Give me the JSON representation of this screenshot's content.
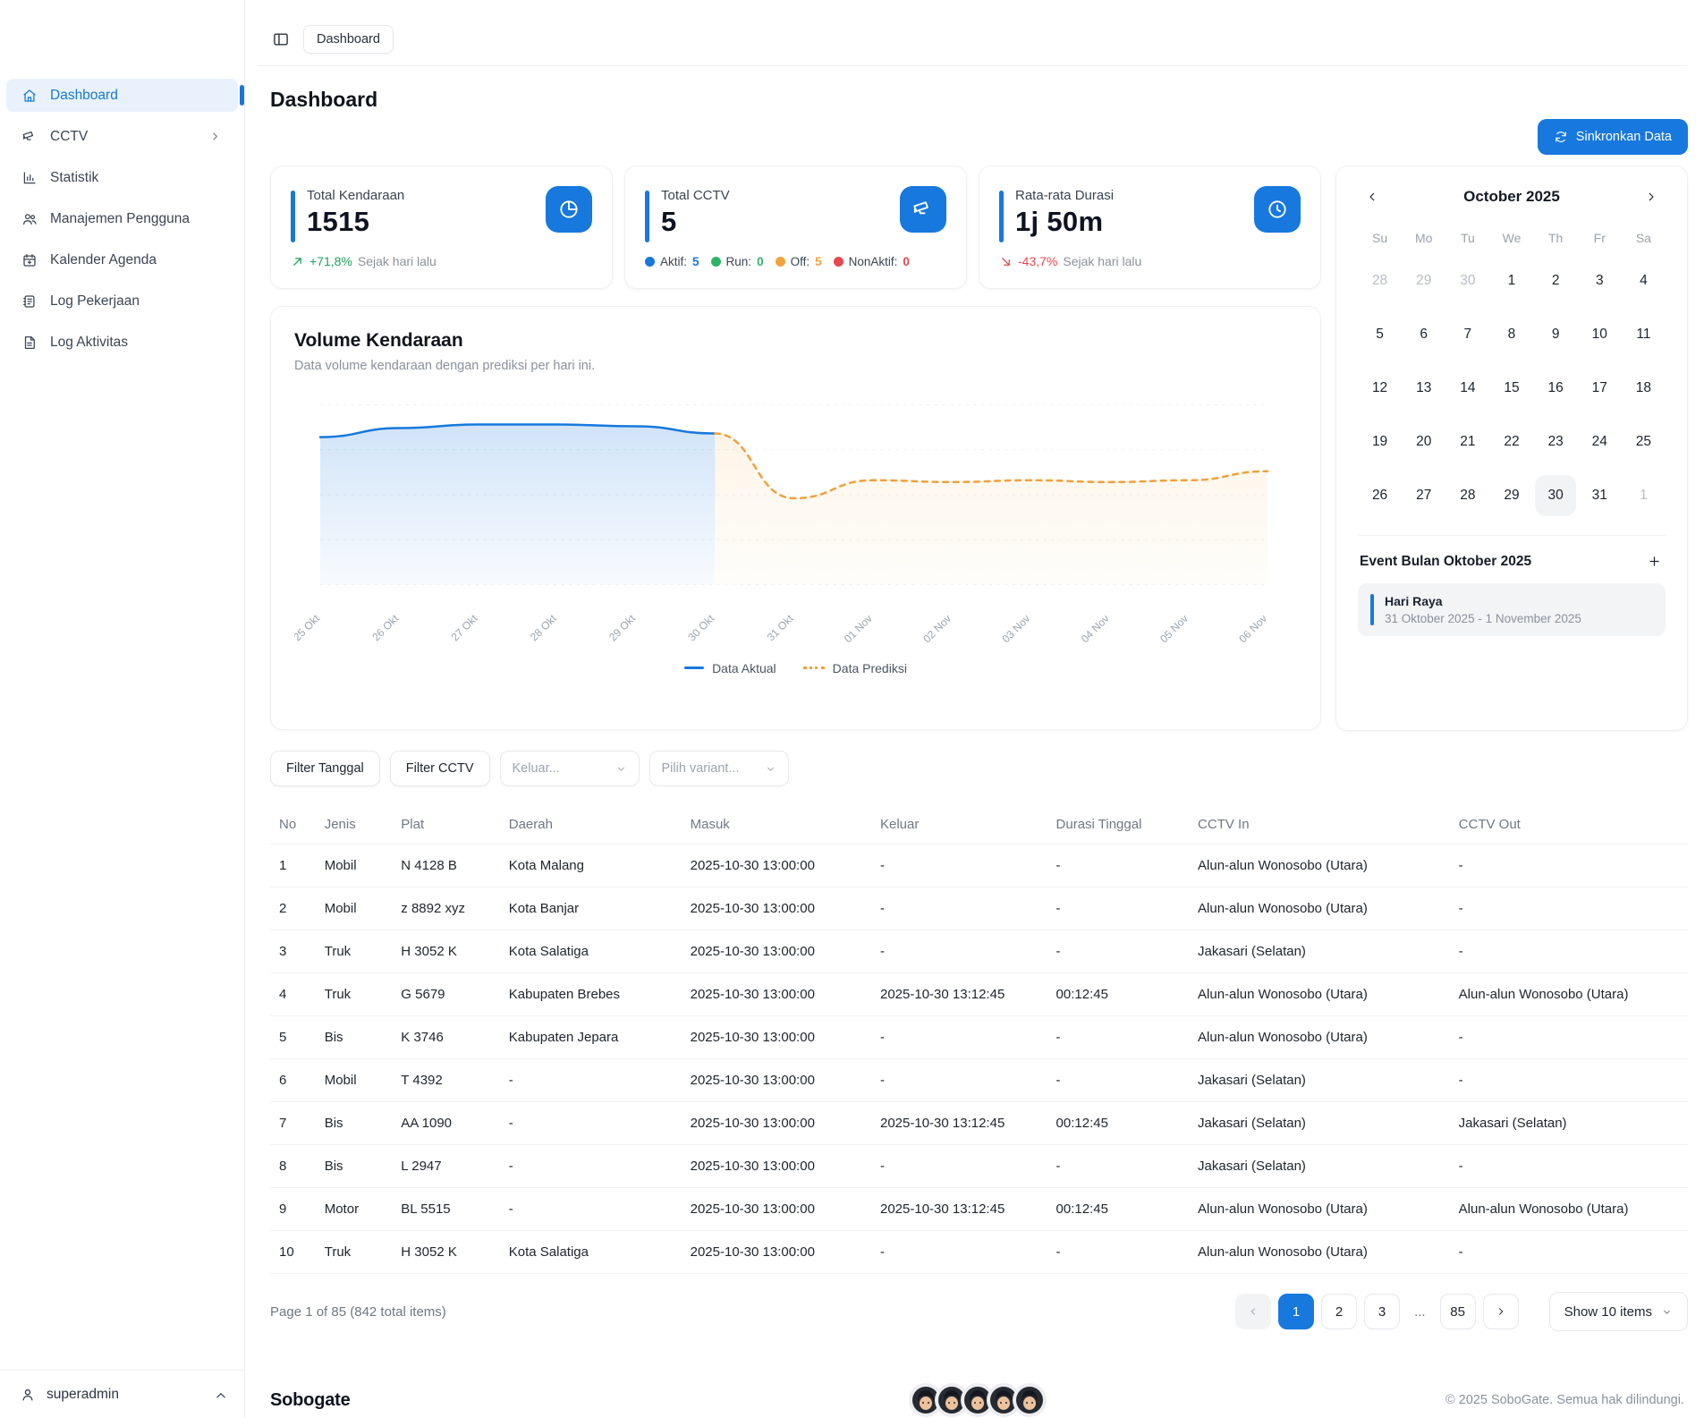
{
  "topbar": {
    "breadcrumb": "Dashboard"
  },
  "page": {
    "title": "Dashboard",
    "sync_button": "Sinkronkan Data"
  },
  "sidebar": {
    "items": [
      {
        "label": "Dashboard",
        "icon": "home",
        "active": true
      },
      {
        "label": "CCTV",
        "icon": "cctv",
        "chevron": true
      },
      {
        "label": "Statistik",
        "icon": "chart"
      },
      {
        "label": "Manajemen Pengguna",
        "icon": "users"
      },
      {
        "label": "Kalender Agenda",
        "icon": "calendar"
      },
      {
        "label": "Log Pekerjaan",
        "icon": "log"
      },
      {
        "label": "Log Aktivitas",
        "icon": "activity"
      }
    ],
    "user": "superadmin"
  },
  "cards": {
    "kendaraan": {
      "label": "Total Kendaraan",
      "value": "1515",
      "trend_arrow": "up",
      "trend_percent": "+71,8%",
      "trend_text": "Sejak hari lalu",
      "trend_color": "#1ea35c",
      "icon": "pie"
    },
    "cctv": {
      "label": "Total CCTV",
      "value": "5",
      "icon": "cctv",
      "badges": [
        {
          "label": "Aktif:",
          "value": "5",
          "color": "#1778dd"
        },
        {
          "label": "Run:",
          "value": "0",
          "color": "#2fb566"
        },
        {
          "label": "Off:",
          "value": "5",
          "color": "#f2a33c"
        },
        {
          "label": "NonAktif:",
          "value": "0",
          "color": "#e5484d"
        }
      ]
    },
    "durasi": {
      "label": "Rata-rata Durasi",
      "value": "1j 50m",
      "trend_arrow": "down",
      "trend_percent": "-43,7%",
      "trend_text": "Sejak hari lalu",
      "trend_color": "#e5484d",
      "icon": "clock"
    }
  },
  "chart_data": {
    "type": "line",
    "title": "Volume Kendaraan",
    "subtitle": "Data volume kendaraan dengan prediksi per hari ini.",
    "x": [
      "25 Okt",
      "26 Okt",
      "27 Okt",
      "28 Okt",
      "29 Okt",
      "30 Okt",
      "31 Okt",
      "01 Nov",
      "02 Nov",
      "03 Nov",
      "04 Nov",
      "05 Nov",
      "06 Nov"
    ],
    "series": [
      {
        "name": "Data Aktual",
        "color": "#1778dd",
        "style": "solid",
        "fill_opacity": 0.14,
        "values": [
          82,
          87,
          89,
          89,
          88,
          84,
          null,
          null,
          null,
          null,
          null,
          null,
          null
        ]
      },
      {
        "name": "Data Prediksi",
        "color": "#f0a13a",
        "style": "dashed",
        "fill_opacity": 0.08,
        "values": [
          null,
          null,
          null,
          null,
          null,
          84,
          48,
          58,
          57,
          58,
          57,
          58,
          63
        ]
      }
    ],
    "ylim": [
      0,
      100
    ],
    "grid": "dashed-horizontal",
    "legend_position": "bottom"
  },
  "calendar": {
    "title": "October 2025",
    "weekdays": [
      "Su",
      "Mo",
      "Tu",
      "We",
      "Th",
      "Fr",
      "Sa"
    ],
    "days": [
      {
        "d": "28",
        "muted": true
      },
      {
        "d": "29",
        "muted": true
      },
      {
        "d": "30",
        "muted": true
      },
      {
        "d": "1"
      },
      {
        "d": "2"
      },
      {
        "d": "3"
      },
      {
        "d": "4"
      },
      {
        "d": "5"
      },
      {
        "d": "6"
      },
      {
        "d": "7"
      },
      {
        "d": "8"
      },
      {
        "d": "9"
      },
      {
        "d": "10"
      },
      {
        "d": "11"
      },
      {
        "d": "12"
      },
      {
        "d": "13"
      },
      {
        "d": "14"
      },
      {
        "d": "15"
      },
      {
        "d": "16"
      },
      {
        "d": "17"
      },
      {
        "d": "18"
      },
      {
        "d": "19"
      },
      {
        "d": "20"
      },
      {
        "d": "21"
      },
      {
        "d": "22"
      },
      {
        "d": "23"
      },
      {
        "d": "24"
      },
      {
        "d": "25"
      },
      {
        "d": "26"
      },
      {
        "d": "27"
      },
      {
        "d": "28"
      },
      {
        "d": "29"
      },
      {
        "d": "30",
        "selected": true
      },
      {
        "d": "31"
      },
      {
        "d": "1",
        "muted": true
      }
    ],
    "events_title": "Event Bulan Oktober 2025",
    "events": [
      {
        "title": "Hari Raya",
        "range": "31 Oktober 2025 - 1 November 2025"
      }
    ]
  },
  "filters": {
    "buttons": [
      "Filter Tanggal",
      "Filter CCTV"
    ],
    "selects": [
      "Keluar...",
      "Pilih variant..."
    ]
  },
  "table": {
    "columns": [
      "No",
      "Jenis",
      "Plat",
      "Daerah",
      "Masuk",
      "Keluar",
      "Durasi Tinggal",
      "CCTV In",
      "CCTV Out"
    ],
    "rows": [
      [
        "1",
        "Mobil",
        "N 4128 B",
        "Kota Malang",
        "2025-10-30 13:00:00",
        "-",
        "-",
        "Alun-alun Wonosobo (Utara)",
        "-"
      ],
      [
        "2",
        "Mobil",
        "z 8892 xyz",
        "Kota Banjar",
        "2025-10-30 13:00:00",
        "-",
        "-",
        "Alun-alun Wonosobo (Utara)",
        "-"
      ],
      [
        "3",
        "Truk",
        "H 3052 K",
        "Kota Salatiga",
        "2025-10-30 13:00:00",
        "-",
        "-",
        "Jakasari (Selatan)",
        "-"
      ],
      [
        "4",
        "Truk",
        "G 5679",
        "Kabupaten Brebes",
        "2025-10-30 13:00:00",
        "2025-10-30 13:12:45",
        "00:12:45",
        "Alun-alun Wonosobo (Utara)",
        "Alun-alun Wonosobo (Utara)"
      ],
      [
        "5",
        "Bis",
        "K 3746",
        "Kabupaten Jepara",
        "2025-10-30 13:00:00",
        "-",
        "-",
        "Alun-alun Wonosobo (Utara)",
        "-"
      ],
      [
        "6",
        "Mobil",
        "T 4392",
        "-",
        "2025-10-30 13:00:00",
        "-",
        "-",
        "Jakasari (Selatan)",
        "-"
      ],
      [
        "7",
        "Bis",
        "AA 1090",
        "-",
        "2025-10-30 13:00:00",
        "2025-10-30 13:12:45",
        "00:12:45",
        "Jakasari (Selatan)",
        "Jakasari (Selatan)"
      ],
      [
        "8",
        "Bis",
        "L 2947",
        "-",
        "2025-10-30 13:00:00",
        "-",
        "-",
        "Jakasari (Selatan)",
        "-"
      ],
      [
        "9",
        "Motor",
        "BL 5515",
        "-",
        "2025-10-30 13:00:00",
        "2025-10-30 13:12:45",
        "00:12:45",
        "Alun-alun Wonosobo (Utara)",
        "Alun-alun Wonosobo (Utara)"
      ],
      [
        "10",
        "Truk",
        "H 3052 K",
        "Kota Salatiga",
        "2025-10-30 13:00:00",
        "-",
        "-",
        "Alun-alun Wonosobo (Utara)",
        "-"
      ]
    ]
  },
  "pagination": {
    "info": "Page 1 of 85 (842 total items)",
    "pages": [
      "1",
      "2",
      "3",
      "...",
      "85"
    ],
    "active_page": "1",
    "show_items_label": "Show 10 items"
  },
  "footer": {
    "brand": "Sobogate",
    "copyright": "© 2025 SoboGate. Semua hak dilindungi.",
    "avatar_count": 5
  },
  "colors": {
    "primary": "#1778dd",
    "green": "#1ea35c",
    "orange": "#f0a13a",
    "red": "#e5484d"
  }
}
